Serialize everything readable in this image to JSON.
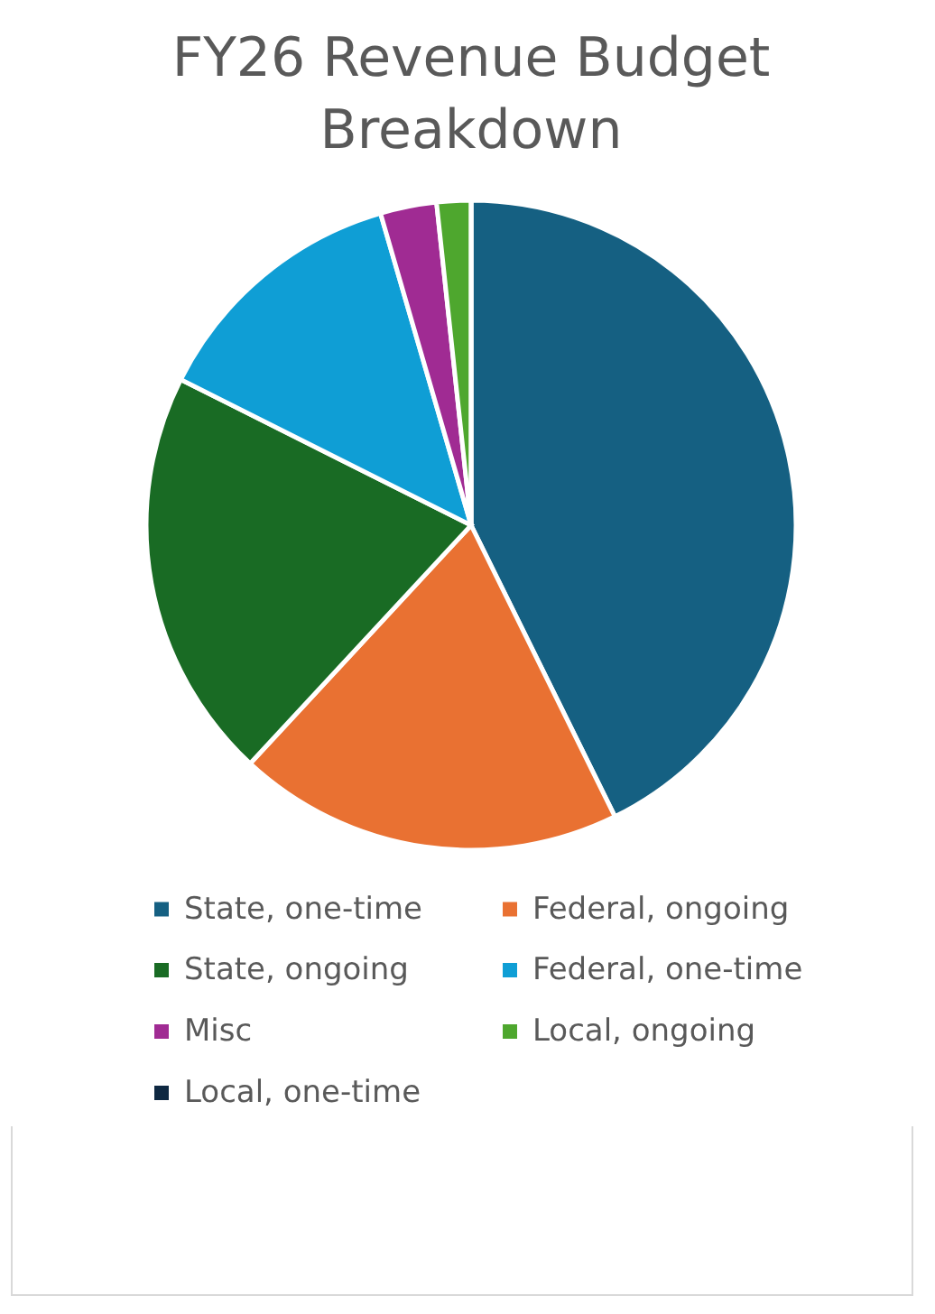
{
  "chart_data": {
    "type": "pie",
    "title": "FY26 Revenue Budget Breakdown",
    "categories": [
      "State, one-time",
      "Federal, ongoing",
      "State, ongoing",
      "Federal, one-time",
      "Misc",
      "Local, ongoing",
      "Local, one-time"
    ],
    "values": [
      42.7,
      19.2,
      20.5,
      13.1,
      2.8,
      1.7,
      0
    ],
    "colors": [
      "#156082",
      "#e97132",
      "#196b24",
      "#0f9ed5",
      "#a02b93",
      "#4ea72e",
      "#0e2841"
    ],
    "legend": "bottom"
  }
}
